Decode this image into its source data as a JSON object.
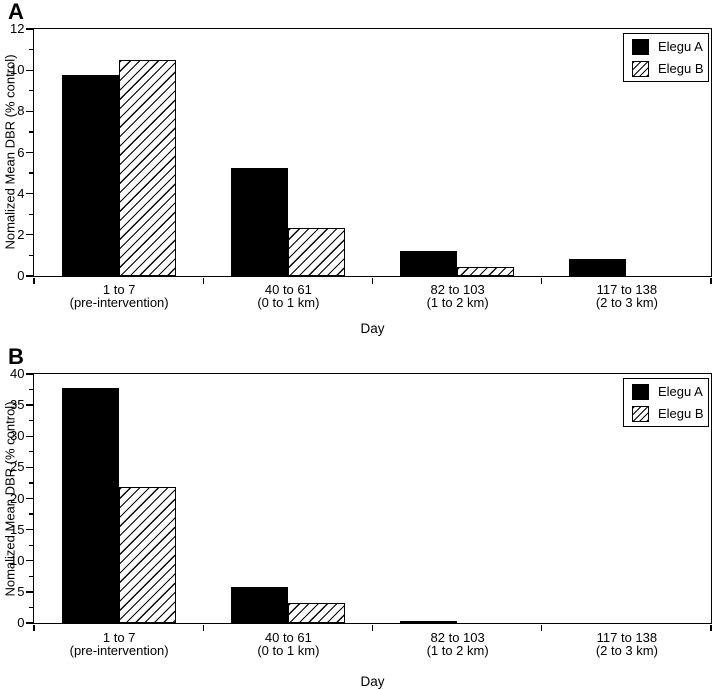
{
  "figure": {
    "background": "#ffffff",
    "ink_color": "#000000"
  },
  "chart_data": [
    {
      "type": "bar",
      "panel_label": "A",
      "xlabel": "Day",
      "ylabel": "Nomalized Mean DBR (% control)",
      "ylim": [
        0,
        12
      ],
      "yticks": [
        0,
        2,
        4,
        6,
        8,
        10,
        12
      ],
      "minor_ticks_between_majors": 1,
      "grid": false,
      "legend_position": "top-right",
      "categories": [
        {
          "range": "1 to 7",
          "detail": "(pre-intervention)"
        },
        {
          "range": "40 to 61",
          "detail": "(0 to 1 km)"
        },
        {
          "range": "82 to 103",
          "detail": "(1 to 2 km)"
        },
        {
          "range": "117 to 138",
          "detail": "(2 to 3 km)"
        }
      ],
      "series": [
        {
          "name": "Elegu A",
          "pattern": "solid",
          "color": "#000000",
          "values": [
            9.75,
            5.25,
            1.2,
            0.85
          ]
        },
        {
          "name": "Elegu B",
          "pattern": "hatch",
          "color": "#000000",
          "values": [
            10.5,
            2.35,
            0.45,
            0
          ]
        }
      ]
    },
    {
      "type": "bar",
      "panel_label": "B",
      "xlabel": "Day",
      "ylabel": "Nomalized Mean DBR (% control)",
      "ylim": [
        0,
        40
      ],
      "yticks": [
        0,
        5,
        10,
        15,
        20,
        25,
        30,
        35,
        40
      ],
      "minor_ticks_between_majors": 1,
      "grid": false,
      "legend_position": "top-right",
      "categories": [
        {
          "range": "1 to 7",
          "detail": "(pre-intervention)"
        },
        {
          "range": "40 to 61",
          "detail": "(0 to 1 km)"
        },
        {
          "range": "82 to 103",
          "detail": "(1 to 2 km)"
        },
        {
          "range": "117 to 138",
          "detail": "(2 to 3 km)"
        }
      ],
      "series": [
        {
          "name": "Elegu A",
          "pattern": "solid",
          "color": "#000000",
          "values": [
            37.8,
            5.75,
            0.4,
            0
          ]
        },
        {
          "name": "Elegu B",
          "pattern": "hatch",
          "color": "#000000",
          "values": [
            21.8,
            3.2,
            0,
            0
          ]
        }
      ]
    }
  ]
}
